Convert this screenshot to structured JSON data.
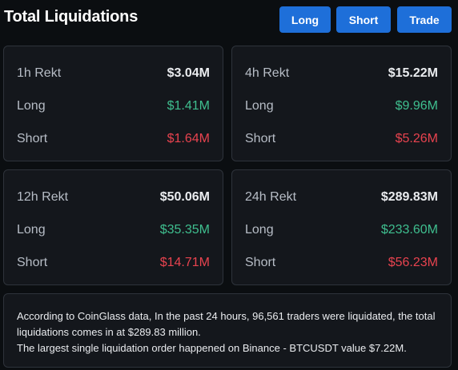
{
  "header": {
    "title": "Total Liquidations",
    "buttons": {
      "long": "Long",
      "short": "Short",
      "trade": "Trade"
    }
  },
  "colors": {
    "accent": "#1e6fd9",
    "long": "#3fbf8f",
    "short": "#e8434f",
    "background": "#0b0e11",
    "card": "#14171c"
  },
  "cards": [
    {
      "period": "1h Rekt",
      "total": "$3.04M",
      "long_label": "Long",
      "long": "$1.41M",
      "short_label": "Short",
      "short": "$1.64M"
    },
    {
      "period": "4h Rekt",
      "total": "$15.22M",
      "long_label": "Long",
      "long": "$9.96M",
      "short_label": "Short",
      "short": "$5.26M"
    },
    {
      "period": "12h Rekt",
      "total": "$50.06M",
      "long_label": "Long",
      "long": "$35.35M",
      "short_label": "Short",
      "short": "$14.71M"
    },
    {
      "period": "24h Rekt",
      "total": "$289.83M",
      "long_label": "Long",
      "long": "$233.60M",
      "short_label": "Short",
      "short": "$56.23M"
    }
  ],
  "summary": {
    "line1": "According to CoinGlass data, In the past 24 hours, 96,561 traders were liquidated, the total liquidations comes in at $289.83 million.",
    "line2": "The largest single liquidation order happened on Binance - BTCUSDT value $7.22M."
  }
}
